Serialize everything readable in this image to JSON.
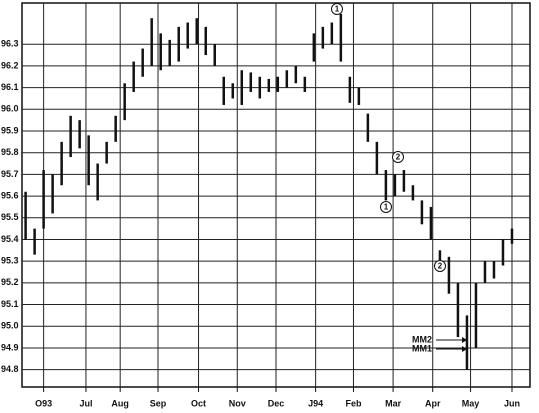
{
  "chart_data": {
    "type": "range",
    "x": [
      -2,
      -1,
      0,
      1,
      2,
      3,
      4,
      5,
      6,
      7,
      8,
      9,
      10,
      11,
      12,
      13,
      14,
      15,
      16,
      17,
      18,
      19,
      20,
      21,
      22,
      23,
      24,
      25,
      26,
      27,
      28,
      29,
      30,
      31,
      32,
      33,
      34,
      35,
      36,
      37,
      38,
      39,
      40,
      41,
      42,
      43,
      44,
      45,
      46,
      47,
      48,
      49,
      50,
      51,
      52
    ],
    "high": [
      95.62,
      95.45,
      95.72,
      95.7,
      95.85,
      95.97,
      95.95,
      95.88,
      95.75,
      95.85,
      95.97,
      96.12,
      96.22,
      96.28,
      96.42,
      96.35,
      96.32,
      96.38,
      96.4,
      96.42,
      96.38,
      96.3,
      96.15,
      96.12,
      96.18,
      96.17,
      96.15,
      96.14,
      96.15,
      96.18,
      96.2,
      96.15,
      96.35,
      96.38,
      96.4,
      96.44,
      96.15,
      96.1,
      95.98,
      95.85,
      95.72,
      95.7,
      95.72,
      95.65,
      95.58,
      95.55,
      95.35,
      95.32,
      95.2,
      95.05,
      95.2,
      95.3,
      95.3,
      95.4,
      95.45
    ],
    "low": [
      95.4,
      95.33,
      95.45,
      95.52,
      95.65,
      95.78,
      95.82,
      95.65,
      95.58,
      95.75,
      95.85,
      95.95,
      96.08,
      96.15,
      96.2,
      96.18,
      96.2,
      96.22,
      96.28,
      96.3,
      96.25,
      96.2,
      96.02,
      96.05,
      96.02,
      96.08,
      96.05,
      96.08,
      96.08,
      96.1,
      96.12,
      96.08,
      96.22,
      96.28,
      96.3,
      96.22,
      96.03,
      96.02,
      95.85,
      95.7,
      95.58,
      95.6,
      95.62,
      95.58,
      95.47,
      95.4,
      95.28,
      95.15,
      94.95,
      94.8,
      94.9,
      95.2,
      95.22,
      95.28,
      95.38
    ],
    "color": "#111111",
    "xlim": [
      -2.4,
      54
    ],
    "xticks": [
      {
        "value": 0,
        "label": "O93"
      },
      {
        "value": 4.7,
        "label": "Jul"
      },
      {
        "value": 8.5,
        "label": "Aug"
      },
      {
        "value": 12.7,
        "label": "Sep"
      },
      {
        "value": 17.2,
        "label": "Oct"
      },
      {
        "value": 21.5,
        "label": "Nov"
      },
      {
        "value": 25.8,
        "label": "Dec"
      },
      {
        "value": 30.2,
        "label": "J94"
      },
      {
        "value": 34.4,
        "label": "Feb"
      },
      {
        "value": 38.8,
        "label": "Mar"
      },
      {
        "value": 43.2,
        "label": "Apr"
      },
      {
        "value": 47.4,
        "label": "May"
      },
      {
        "value": 52.0,
        "label": "Jun"
      }
    ],
    "ylim": [
      94.72,
      96.49
    ],
    "yticks": [
      94.8,
      94.9,
      {
        "value": 95.0,
        "label": "95.0"
      },
      95.1,
      95.2,
      95.3,
      95.4,
      95.5,
      95.6,
      95.7,
      95.8,
      95.9,
      {
        "value": 96.0,
        "label": "96.0"
      },
      96.1,
      96.2,
      96.3
    ],
    "grid": true,
    "annotations": [
      "1",
      "2",
      "1",
      "2",
      "MM2",
      "MM1"
    ]
  }
}
